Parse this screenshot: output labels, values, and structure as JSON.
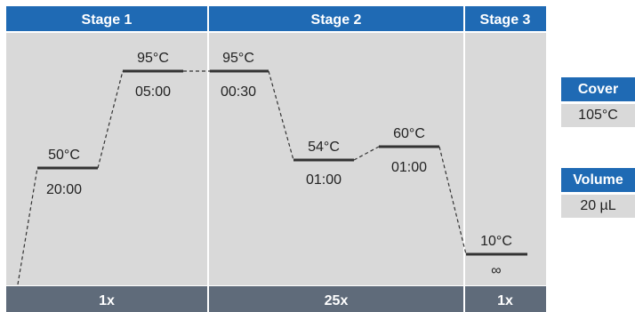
{
  "stages": [
    {
      "title": "Stage 1",
      "cycles": "1x"
    },
    {
      "title": "Stage 2",
      "cycles": "25x"
    },
    {
      "title": "Stage 3",
      "cycles": "1x"
    }
  ],
  "steps": [
    {
      "temp": "50°C",
      "time": "20:00"
    },
    {
      "temp": "95°C",
      "time": "05:00"
    },
    {
      "temp": "95°C",
      "time": "00:30"
    },
    {
      "temp": "54°C",
      "time": "01:00"
    },
    {
      "temp": "60°C",
      "time": "01:00"
    },
    {
      "temp": "10°C",
      "time": "∞"
    }
  ],
  "cover": {
    "label": "Cover",
    "value": "105°C"
  },
  "volume": {
    "label": "Volume",
    "value": "20 µL"
  },
  "colors": {
    "header": "#1f6ab4",
    "panel": "#d9d9d9",
    "footer": "#5f6b7a",
    "line": "#333333"
  }
}
